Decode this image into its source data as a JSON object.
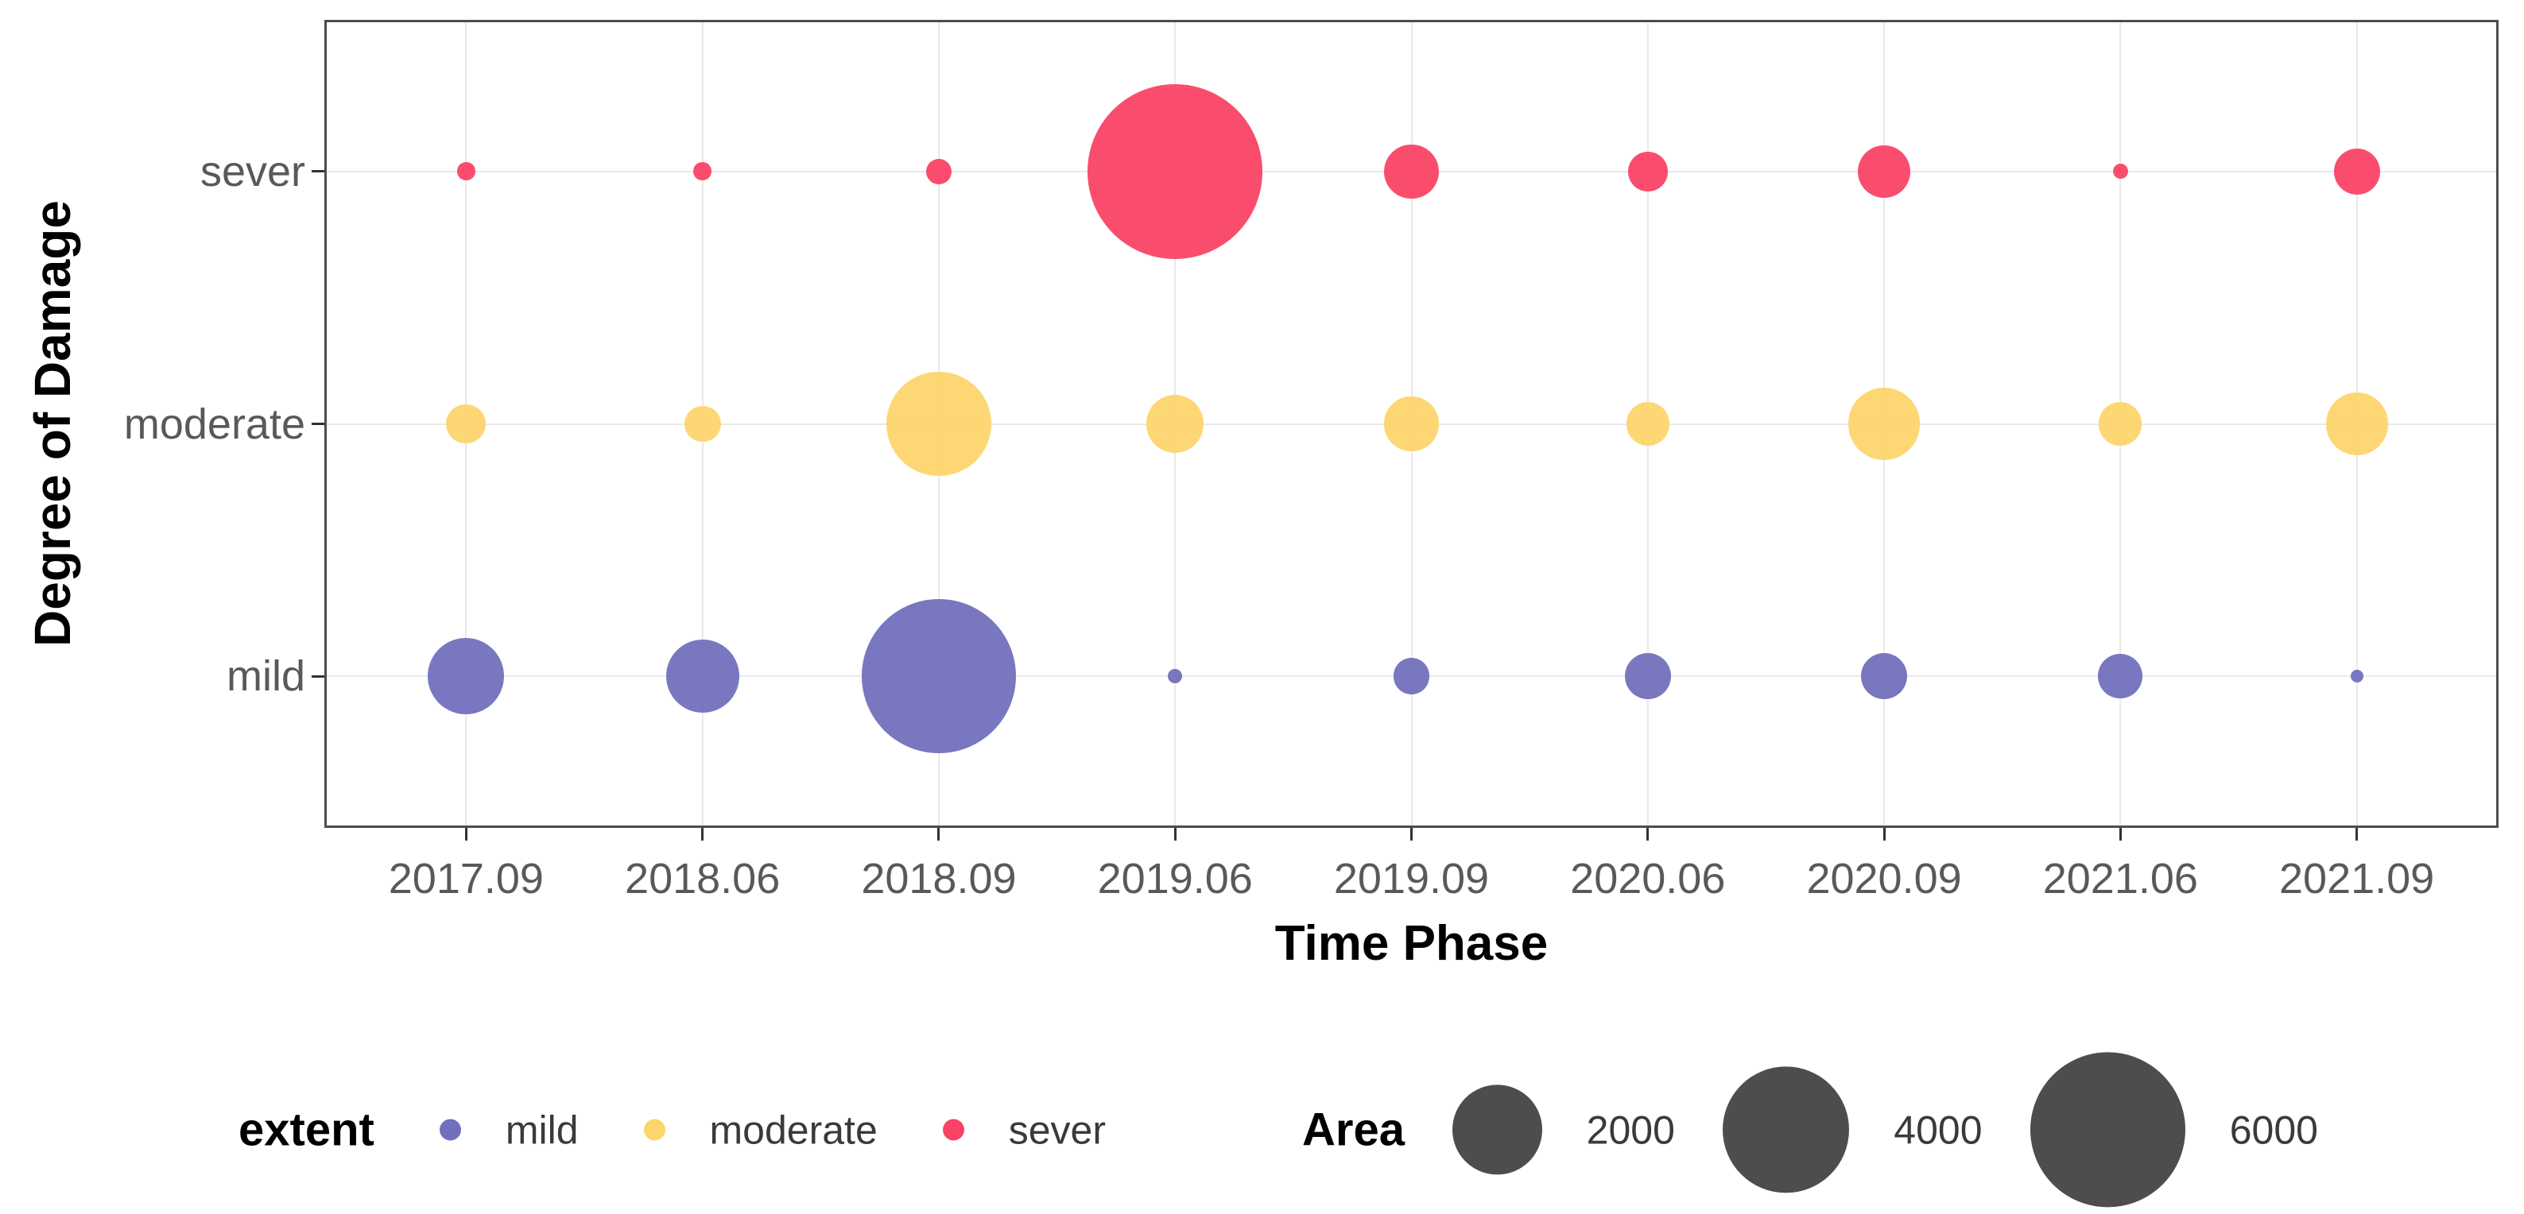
{
  "chart_data": {
    "type": "scatter",
    "subtype": "bubble",
    "title": "",
    "xlabel": "Time Phase",
    "ylabel": "Degree of Damage",
    "x_categories": [
      "2017.09",
      "2018.06",
      "2018.09",
      "2019.06",
      "2019.09",
      "2020.06",
      "2020.09",
      "2021.06",
      "2021.09"
    ],
    "y_categories": [
      "mild",
      "moderate",
      "sever"
    ],
    "series": [
      {
        "name": "mild",
        "color": "#7170BC",
        "areas": [
          1450,
          1330,
          5930,
          50,
          330,
          530,
          530,
          490,
          40
        ]
      },
      {
        "name": "moderate",
        "color": "#FDD56D",
        "areas": [
          390,
          330,
          2740,
          820,
          730,
          460,
          1280,
          460,
          960
        ]
      },
      {
        "name": "sever",
        "color": "#FA4365",
        "areas": [
          80,
          80,
          160,
          7600,
          730,
          390,
          690,
          60,
          530
        ]
      }
    ],
    "grid": true,
    "legend_position": "bottom",
    "color_legend": {
      "title": "extent",
      "items": [
        {
          "label": "mild",
          "color": "#7170BC"
        },
        {
          "label": "moderate",
          "color": "#FDD56D"
        },
        {
          "label": "sever",
          "color": "#FA4365"
        }
      ]
    },
    "size_legend": {
      "title": "Area",
      "values": [
        2000,
        4000,
        6000
      ],
      "swatch_color": "#4d4d4d"
    },
    "colors": {
      "panel_border": "#4d4d4d",
      "gridline": "#e9e9e9",
      "tick_label": "#595959"
    }
  }
}
